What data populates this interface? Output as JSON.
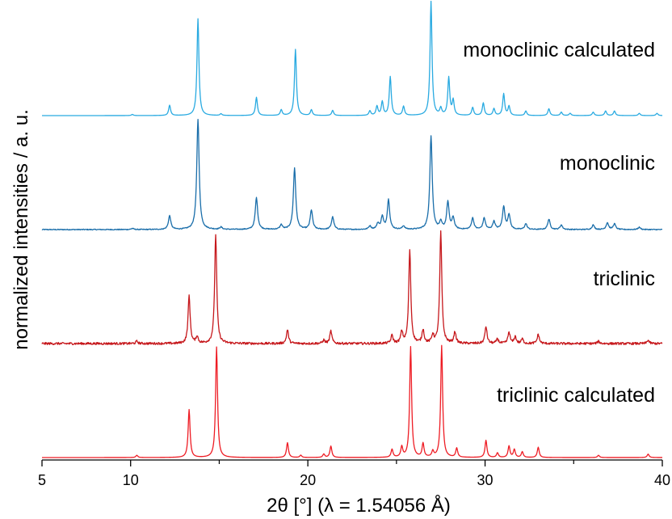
{
  "chart_data": {
    "type": "line",
    "xlabel": "2θ [°] (λ = 1.54056 Å)",
    "ylabel": "normalized intensities / a. u.",
    "xlim": [
      5,
      40
    ],
    "x_ticks": [
      5,
      10,
      20,
      30,
      40
    ],
    "x_tick_labels": [
      "5",
      "10",
      "20",
      "30",
      "40"
    ],
    "y_ticks_shown": false,
    "grid": false,
    "legend": "none (series labelled inline)",
    "x_step": 0.025,
    "series": [
      {
        "name": "monoclinic calculated",
        "color": "#29aae1",
        "baseline": 3.0,
        "noise": 0,
        "width": 0.065,
        "peaks": [
          [
            10.1,
            0.01
          ],
          [
            12.2,
            0.09
          ],
          [
            13.8,
            0.85
          ],
          [
            15.1,
            0.015
          ],
          [
            17.1,
            0.16
          ],
          [
            18.5,
            0.05
          ],
          [
            19.3,
            0.58
          ],
          [
            20.2,
            0.05
          ],
          [
            21.4,
            0.045
          ],
          [
            23.5,
            0.04
          ],
          [
            23.9,
            0.08
          ],
          [
            24.2,
            0.12
          ],
          [
            24.65,
            0.34
          ],
          [
            25.4,
            0.08
          ],
          [
            26.95,
            1.0
          ],
          [
            27.5,
            0.06
          ],
          [
            27.95,
            0.33
          ],
          [
            28.2,
            0.13
          ],
          [
            29.3,
            0.07
          ],
          [
            29.9,
            0.11
          ],
          [
            30.5,
            0.06
          ],
          [
            31.05,
            0.19
          ],
          [
            31.35,
            0.08
          ],
          [
            32.3,
            0.04
          ],
          [
            33.6,
            0.06
          ],
          [
            34.3,
            0.03
          ],
          [
            34.8,
            0.02
          ],
          [
            36.1,
            0.03
          ],
          [
            36.8,
            0.04
          ],
          [
            37.3,
            0.04
          ],
          [
            38.7,
            0.02
          ],
          [
            39.7,
            0.02
          ]
        ]
      },
      {
        "name": "monoclinic",
        "color": "#1a6eaa",
        "baseline": 2.0,
        "noise": 0.004,
        "width": 0.08,
        "peaks": [
          [
            10.1,
            0.01
          ],
          [
            12.2,
            0.12
          ],
          [
            13.8,
            0.97
          ],
          [
            15.1,
            0.02
          ],
          [
            17.1,
            0.28
          ],
          [
            18.5,
            0.04
          ],
          [
            19.25,
            0.54
          ],
          [
            20.2,
            0.17
          ],
          [
            21.4,
            0.11
          ],
          [
            23.5,
            0.03
          ],
          [
            23.95,
            0.05
          ],
          [
            24.2,
            0.11
          ],
          [
            24.55,
            0.26
          ],
          [
            25.4,
            0.03
          ],
          [
            26.95,
            0.82
          ],
          [
            27.5,
            0.06
          ],
          [
            27.9,
            0.24
          ],
          [
            28.2,
            0.1
          ],
          [
            29.3,
            0.1
          ],
          [
            29.95,
            0.1
          ],
          [
            30.5,
            0.07
          ],
          [
            31.05,
            0.2
          ],
          [
            31.35,
            0.13
          ],
          [
            32.3,
            0.05
          ],
          [
            33.6,
            0.09
          ],
          [
            34.3,
            0.04
          ],
          [
            36.1,
            0.04
          ],
          [
            36.9,
            0.06
          ],
          [
            37.3,
            0.05
          ],
          [
            38.7,
            0.02
          ]
        ]
      },
      {
        "name": "triclinic",
        "color": "#c6181c",
        "baseline": 1.0,
        "noise": 0.01,
        "width": 0.07,
        "peaks": [
          [
            10.35,
            0.02
          ],
          [
            13.3,
            0.42
          ],
          [
            13.75,
            0.06
          ],
          [
            14.8,
            0.96
          ],
          [
            18.85,
            0.12
          ],
          [
            20.9,
            0.03
          ],
          [
            21.3,
            0.11
          ],
          [
            24.75,
            0.07
          ],
          [
            25.3,
            0.1
          ],
          [
            25.75,
            0.82
          ],
          [
            26.5,
            0.12
          ],
          [
            27.05,
            0.07
          ],
          [
            27.5,
            0.98
          ],
          [
            28.3,
            0.1
          ],
          [
            30.05,
            0.15
          ],
          [
            30.7,
            0.04
          ],
          [
            31.35,
            0.1
          ],
          [
            31.7,
            0.06
          ],
          [
            32.1,
            0.04
          ],
          [
            33.0,
            0.08
          ],
          [
            36.4,
            0.02
          ],
          [
            39.2,
            0.03
          ]
        ]
      },
      {
        "name": "triclinic calculated",
        "color": "#ee1c24",
        "baseline": 0.0,
        "noise": 0,
        "width": 0.065,
        "peaks": [
          [
            10.35,
            0.02
          ],
          [
            13.3,
            0.42
          ],
          [
            14.85,
            0.97
          ],
          [
            18.85,
            0.13
          ],
          [
            19.6,
            0.02
          ],
          [
            20.9,
            0.03
          ],
          [
            21.3,
            0.1
          ],
          [
            24.75,
            0.07
          ],
          [
            25.3,
            0.09
          ],
          [
            25.8,
            0.97
          ],
          [
            26.5,
            0.12
          ],
          [
            27.05,
            0.05
          ],
          [
            27.55,
            0.98
          ],
          [
            28.4,
            0.08
          ],
          [
            30.05,
            0.15
          ],
          [
            30.7,
            0.04
          ],
          [
            31.35,
            0.1
          ],
          [
            31.65,
            0.07
          ],
          [
            32.1,
            0.05
          ],
          [
            33.0,
            0.09
          ],
          [
            36.4,
            0.02
          ],
          [
            39.2,
            0.03
          ]
        ]
      }
    ]
  }
}
